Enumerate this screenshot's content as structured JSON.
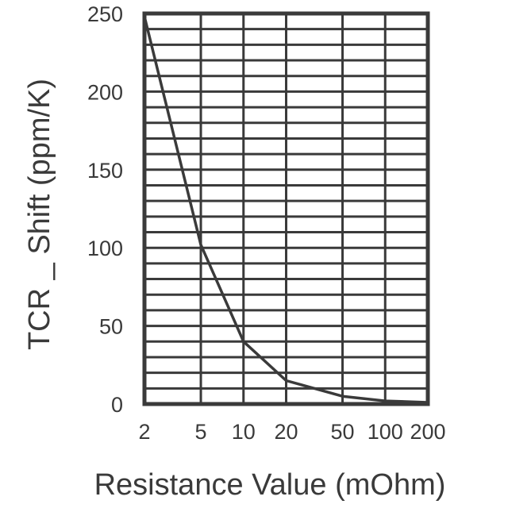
{
  "chart_data": {
    "type": "line",
    "title": "",
    "xlabel": "Resistance Value (mOhm)",
    "ylabel": "TCR _ Shift (ppm/K)",
    "x_scale": "log",
    "x_ticks": [
      "2",
      "5",
      "10",
      "20",
      "50",
      "100",
      "200"
    ],
    "y_ticks": [
      "0",
      "50",
      "100",
      "150",
      "200",
      "250"
    ],
    "xlim": [
      2,
      200
    ],
    "ylim": [
      0,
      250
    ],
    "grid": true,
    "series": [
      {
        "x": [
          2,
          5,
          10,
          20,
          50,
          100,
          200
        ],
        "y": [
          248,
          102,
          40,
          15,
          5,
          2,
          1
        ]
      }
    ],
    "colors": {
      "line": "#3a3a3a",
      "grid": "#3a3a3a",
      "frame": "#3a3a3a"
    }
  }
}
